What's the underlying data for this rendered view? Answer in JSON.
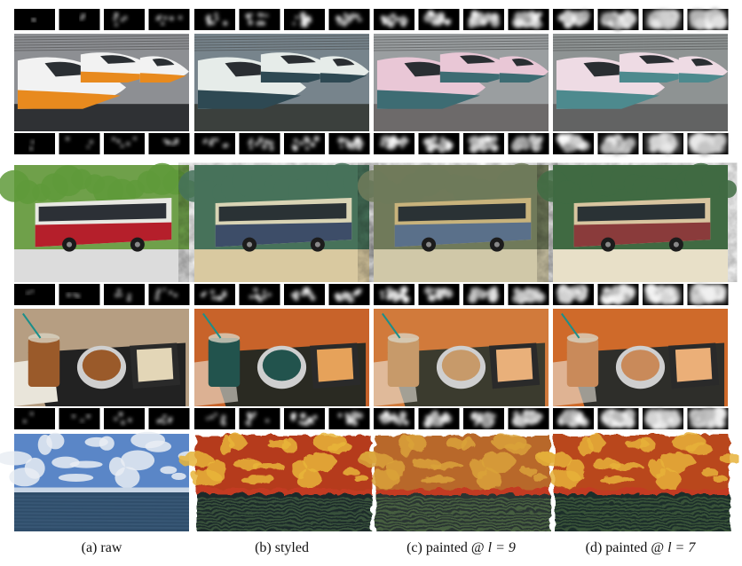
{
  "figure": {
    "columns": [
      {
        "id": "raw",
        "caption_prefix": "(a) raw",
        "caption_math": ""
      },
      {
        "id": "styled",
        "caption_prefix": "(b) styled",
        "caption_math": ""
      },
      {
        "id": "painted9",
        "caption_prefix": "(c) painted @ ",
        "caption_math": "l = 9"
      },
      {
        "id": "painted7",
        "caption_prefix": "(d) painted @ ",
        "caption_math": "l = 7"
      }
    ],
    "rows": [
      {
        "id": "train",
        "subject": "high-speed trains"
      },
      {
        "id": "bus",
        "subject": "city bus"
      },
      {
        "id": "food",
        "subject": "food tray"
      },
      {
        "id": "sea",
        "subject": "sea and sky"
      }
    ]
  }
}
